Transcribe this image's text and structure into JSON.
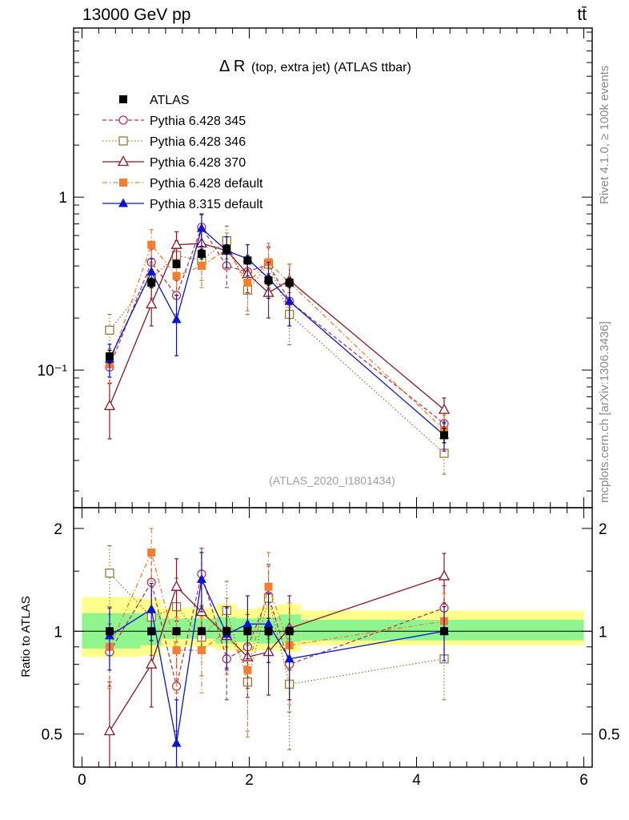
{
  "header": {
    "energy_label": "13000 GeV pp",
    "process_label": "tt̄"
  },
  "side": {
    "rivet_label": "Rivet 4.1.0, ≥ 100k events",
    "site_label": "mcplots.cern.ch [arXiv:1306.3436]"
  },
  "chart_data": {
    "type": "line",
    "title_main": "Δ R",
    "title_sub": "(top, extra jet) (ATLAS ttbar)",
    "analysis_label": "(ATLAS_2020_I1801434)",
    "ylabel_ratio": "Ratio to ATLAS",
    "xlim": [
      -0.1,
      6.1
    ],
    "ylim_main": [
      0.016,
      9.5
    ],
    "ylim_ratio": [
      0.4,
      2.3
    ],
    "x_ticks": [
      "0",
      "2",
      "4",
      "6"
    ],
    "y_ticks_main": [
      "1",
      "10⁻¹"
    ],
    "y_ticks_ratio": [
      "0.5",
      "1",
      "2"
    ],
    "x": [
      0.33,
      0.83,
      1.13,
      1.43,
      1.73,
      1.98,
      2.23,
      2.48,
      4.33
    ],
    "band_edges": [
      0.0,
      0.7,
      0.95,
      1.6,
      1.85,
      2.1,
      2.35,
      2.62,
      6.0
    ],
    "band_stat": [
      0.88,
      0.88,
      0.92,
      0.9,
      0.91,
      0.9,
      0.91,
      0.92
    ],
    "band_total": [
      1.26,
      1.24,
      1.17,
      1.2,
      1.16,
      1.18,
      1.2,
      1.15
    ],
    "band_inner_lo": [
      0.89,
      0.91,
      0.95,
      0.92,
      0.93,
      0.92,
      0.93,
      0.94
    ],
    "band_inner_hi": [
      1.13,
      1.13,
      1.09,
      1.1,
      1.09,
      1.1,
      1.12,
      1.08
    ],
    "band_outer_lo": [
      0.84,
      0.85,
      0.9,
      0.88,
      0.87,
      0.88,
      0.87,
      0.91
    ],
    "band_outer_hi": [
      1.26,
      1.24,
      1.17,
      1.2,
      1.16,
      1.18,
      1.2,
      1.15
    ],
    "series": [
      {
        "name": "ATLAS",
        "color": "#000000",
        "marker": "square-filled",
        "dash": "none",
        "line": false,
        "values": [
          0.12,
          0.32,
          0.41,
          0.47,
          0.5,
          0.43,
          0.33,
          0.32,
          0.042
        ],
        "errors": [
          0.01,
          0.02,
          0.02,
          0.03,
          0.03,
          0.02,
          0.02,
          0.02,
          0.004
        ],
        "ratio": [
          1,
          1,
          1,
          1,
          1,
          1,
          1,
          1,
          1
        ],
        "ratio_err": [
          0,
          0,
          0,
          0,
          0,
          0,
          0,
          0,
          0
        ]
      },
      {
        "name": "Pythia 6.428 345",
        "color": "#b03a52",
        "marker": "circle-open",
        "dash": "5,3",
        "line": true,
        "values": [
          0.104,
          0.42,
          0.27,
          0.67,
          0.4,
          0.37,
          0.41,
          0.25,
          0.049
        ],
        "errors": [
          0.02,
          0.08,
          0.06,
          0.12,
          0.1,
          0.09,
          0.1,
          0.07,
          0.008
        ],
        "ratio": [
          0.87,
          1.39,
          0.69,
          1.47,
          0.83,
          0.9,
          1.27,
          0.8,
          1.17
        ],
        "ratio_err": [
          0.18,
          0.28,
          0.18,
          0.28,
          0.2,
          0.22,
          0.3,
          0.22,
          0.19
        ]
      },
      {
        "name": "Pythia 6.428 346",
        "color": "#9a7a3c",
        "marker": "square-open",
        "dash": "1.5,2.5",
        "line": true,
        "values": [
          0.17,
          0.34,
          0.46,
          0.43,
          0.56,
          0.29,
          0.41,
          0.21,
          0.033
        ],
        "errors": [
          0.04,
          0.08,
          0.1,
          0.1,
          0.12,
          0.08,
          0.11,
          0.07,
          0.008
        ],
        "ratio": [
          1.48,
          1.1,
          1.18,
          0.96,
          1.15,
          0.71,
          1.25,
          0.7,
          0.83
        ],
        "ratio_err": [
          0.3,
          0.25,
          0.25,
          0.22,
          0.25,
          0.2,
          0.3,
          0.25,
          0.2
        ]
      },
      {
        "name": "Pythia 6.428 370",
        "color": "#8c1624",
        "marker": "triangle-open",
        "dash": "none",
        "line": true,
        "values": [
          0.062,
          0.24,
          0.53,
          0.54,
          0.49,
          0.36,
          0.28,
          0.33,
          0.059
        ],
        "errors": [
          0.022,
          0.06,
          0.1,
          0.12,
          0.1,
          0.08,
          0.08,
          0.08,
          0.01
        ],
        "ratio": [
          0.51,
          0.8,
          1.35,
          1.14,
          0.97,
          0.84,
          0.87,
          1.02,
          1.45
        ],
        "ratio_err": [
          0.2,
          0.2,
          0.28,
          0.24,
          0.2,
          0.2,
          0.22,
          0.25,
          0.24
        ]
      },
      {
        "name": "Pythia 6.428 default",
        "color": "#f57d2d",
        "marker": "square-filled",
        "dash": "6,3,1.5,3",
        "line": true,
        "values": [
          0.108,
          0.53,
          0.35,
          0.4,
          0.5,
          0.32,
          0.42,
          0.32,
          0.045
        ],
        "errors": [
          0.025,
          0.12,
          0.08,
          0.1,
          0.12,
          0.1,
          0.12,
          0.09,
          0.01
        ],
        "ratio": [
          0.9,
          1.7,
          0.88,
          0.88,
          1.0,
          0.77,
          1.35,
          0.91,
          1.07
        ],
        "ratio_err": [
          0.22,
          0.3,
          0.22,
          0.22,
          0.25,
          0.28,
          0.35,
          0.3,
          0.22
        ]
      },
      {
        "name": "Pythia 8.315 default",
        "color": "#0a14d2",
        "marker": "triangle-filled",
        "dash": "none",
        "line": true,
        "values": [
          0.116,
          0.37,
          0.196,
          0.66,
          0.49,
          0.44,
          0.34,
          0.25,
          0.042
        ],
        "errors": [
          0.025,
          0.07,
          0.075,
          0.14,
          0.1,
          0.09,
          0.08,
          0.07,
          0.008
        ],
        "ratio": [
          0.97,
          1.16,
          0.47,
          1.42,
          0.98,
          1.05,
          1.05,
          0.83,
          1.0
        ],
        "ratio_err": [
          0.2,
          0.22,
          0.16,
          0.28,
          0.2,
          0.22,
          0.24,
          0.2,
          0.18
        ]
      }
    ]
  }
}
